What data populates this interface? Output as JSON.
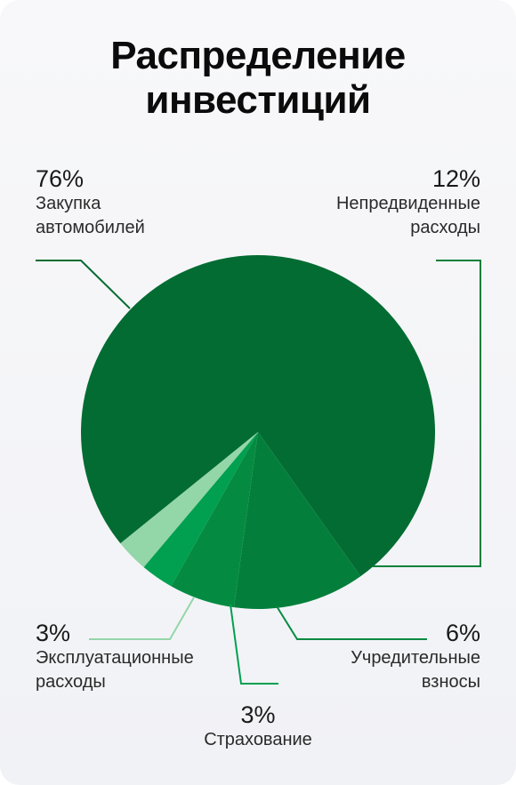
{
  "title": "Распределение\nинвестиций",
  "colors": {
    "slice_1": "#036c32",
    "slice_2": "#037f3b",
    "slice_3": "#048b41",
    "slice_4": "#00a050",
    "slice_5": "#93d6a8"
  },
  "chart_data": {
    "type": "pie",
    "title": "Распределение инвестиций",
    "slices": [
      {
        "label": "Закупка автомобилей",
        "value": 76,
        "display": "76%"
      },
      {
        "label": "Непредвиденные расходы",
        "value": 12,
        "display": "12%"
      },
      {
        "label": "Учредительные взносы",
        "value": 6,
        "display": "6%"
      },
      {
        "label": "Страхование",
        "value": 3,
        "display": "3%"
      },
      {
        "label": "Эксплуатационные расходы",
        "value": 3,
        "display": "3%"
      }
    ]
  }
}
